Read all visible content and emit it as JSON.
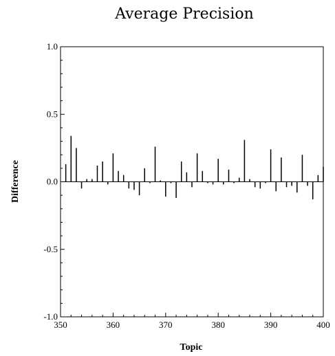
{
  "chart_data": {
    "type": "bar",
    "title": "Average Precision",
    "xlabel": "Topic",
    "ylabel": "Difference",
    "xlim": [
      350,
      400
    ],
    "ylim": [
      -1.0,
      1.0
    ],
    "xticks": [
      350,
      360,
      370,
      380,
      390,
      400
    ],
    "yticks": [
      -1.0,
      -0.5,
      0.0,
      0.5,
      1.0
    ],
    "xtick_labels": [
      "350",
      "360",
      "370",
      "380",
      "390",
      "400"
    ],
    "ytick_labels": [
      "-1.0",
      "-0.5",
      "0.0",
      "0.5",
      "1.0"
    ],
    "grid": false,
    "x": [
      351,
      352,
      353,
      354,
      355,
      356,
      357,
      358,
      359,
      360,
      361,
      362,
      363,
      364,
      365,
      366,
      367,
      368,
      369,
      370,
      371,
      372,
      373,
      374,
      375,
      376,
      377,
      378,
      379,
      380,
      381,
      382,
      383,
      384,
      385,
      386,
      387,
      388,
      389,
      390,
      391,
      392,
      393,
      394,
      395,
      396,
      397,
      398,
      399,
      400
    ],
    "values": [
      0.13,
      0.34,
      0.25,
      -0.05,
      0.02,
      0.02,
      0.12,
      0.15,
      -0.02,
      0.21,
      0.08,
      0.05,
      -0.05,
      -0.06,
      -0.1,
      0.1,
      -0.01,
      0.26,
      0.01,
      -0.11,
      -0.01,
      -0.12,
      0.15,
      0.07,
      -0.04,
      0.21,
      0.08,
      -0.01,
      -0.02,
      0.17,
      -0.02,
      0.09,
      -0.01,
      0.03,
      0.31,
      0.02,
      -0.04,
      -0.05,
      -0.01,
      0.24,
      -0.07,
      0.18,
      -0.04,
      -0.03,
      -0.08,
      0.2,
      -0.03,
      -0.13,
      0.05,
      0.11
    ]
  }
}
